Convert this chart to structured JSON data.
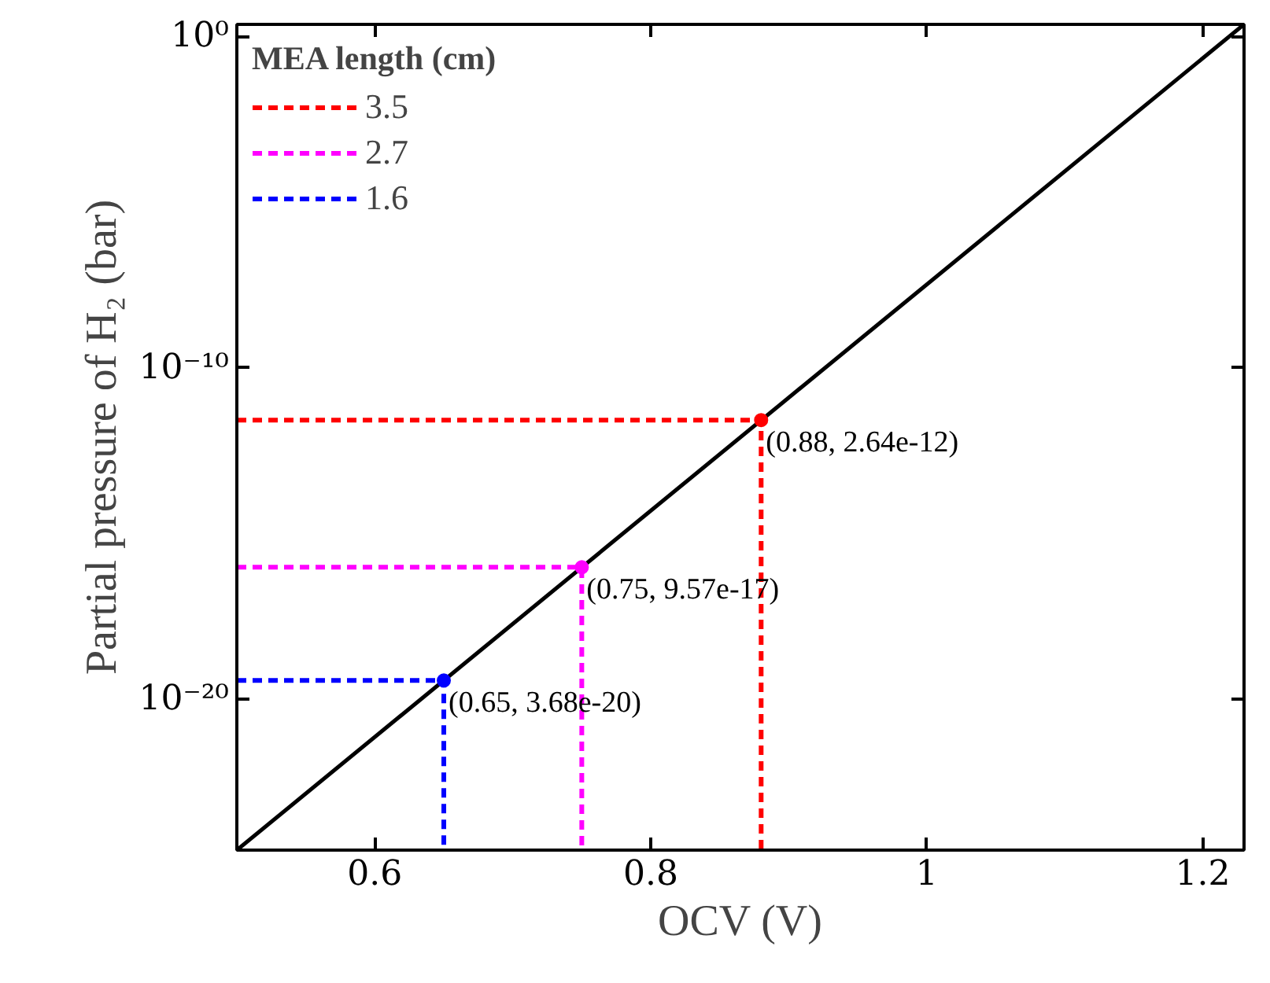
{
  "chart_data": {
    "type": "line",
    "xlabel": "OCV (V)",
    "ylabel": "Partial pressure of H₂ (bar)",
    "legend_title": "MEA length (cm)",
    "legend": "top left",
    "log": "y",
    "grid": false,
    "xlim": [
      0.5,
      1.23
    ],
    "ylim": [
      2.8e-25,
      2.3
    ],
    "xticks": [
      0.6,
      0.8,
      1,
      1.2
    ],
    "yticks": [
      {
        "value": 1,
        "label": "10⁰"
      },
      {
        "value": 1e-10,
        "label": "10⁻¹⁰"
      },
      {
        "value": 1e-20,
        "label": "10⁻²⁰"
      }
    ],
    "series": [
      {
        "color": "#000000",
        "line_style": "solid",
        "x": [
          0.5,
          1.23
        ],
        "values": [
          2.8e-25,
          2.3
        ]
      },
      {
        "name": "3.5",
        "type": "line",
        "color": "#ff0000",
        "line_style": "dashed",
        "x": [
          0.5,
          0.88,
          0.88
        ],
        "values": [
          2.64e-12,
          2.64e-12,
          2.8e-25
        ]
      },
      {
        "name": "2.7",
        "type": "line",
        "color": "#ff00ff",
        "line_style": "dashed",
        "x": [
          0.5,
          0.75,
          0.75
        ],
        "values": [
          9.57e-17,
          9.57e-17,
          2.8e-25
        ]
      },
      {
        "name": "1.6",
        "type": "line",
        "color": "#0000ff",
        "line_style": "dashed",
        "x": [
          0.5,
          0.65,
          0.65
        ],
        "values": [
          3.68e-20,
          3.68e-20,
          2.8e-25
        ]
      },
      {
        "type": "scatter",
        "marker": "circle",
        "x": [
          0.88,
          0.75,
          0.65
        ],
        "values": [
          2.64e-12,
          9.57e-17,
          3.68e-20
        ],
        "colors": [
          "#ff0000",
          "#ff00ff",
          "#0000ff"
        ]
      }
    ],
    "annotations": [
      {
        "text": "(0.88, 2.64e-12)",
        "x": 0.88,
        "y": 2.64e-12
      },
      {
        "text": "(0.75, 9.57e-17)",
        "x": 0.75,
        "y": 9.57e-17
      },
      {
        "text": "(0.65, 3.68e-20)",
        "x": 0.65,
        "y": 3.68e-20
      }
    ]
  }
}
